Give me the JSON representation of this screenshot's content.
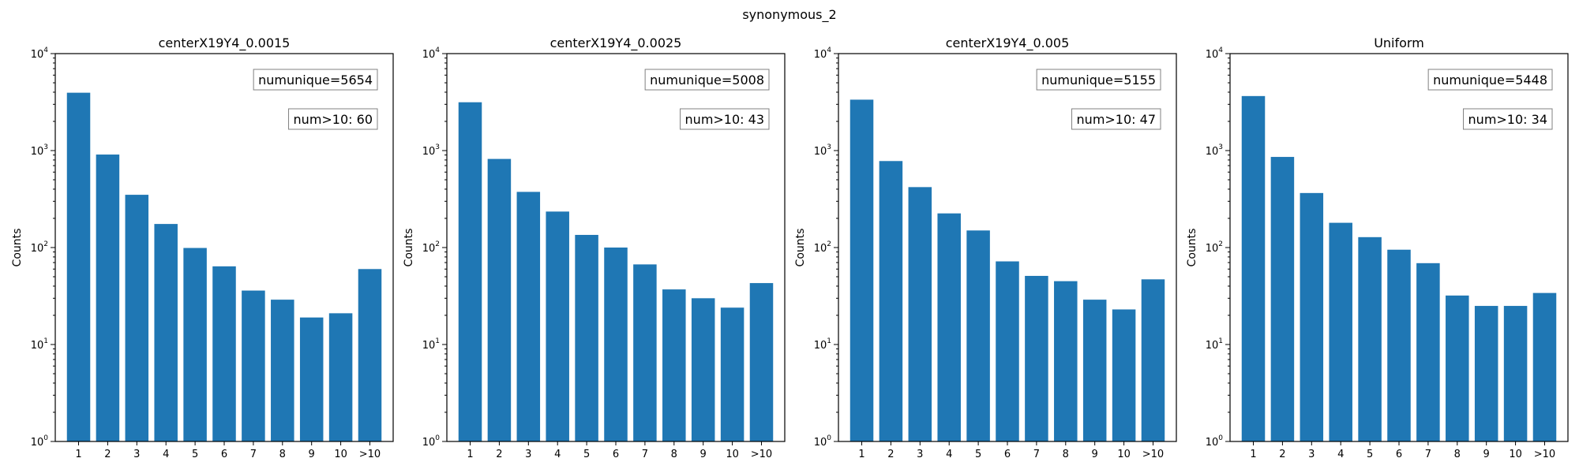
{
  "suptitle": "synonymous_2",
  "chart_data": [
    {
      "type": "bar",
      "title": "centerX19Y4_0.0015",
      "xlabel": "",
      "ylabel": "Counts",
      "yscale": "log",
      "ylim": [
        1,
        10000
      ],
      "y_ticks": [
        "10^0",
        "10^1",
        "10^2",
        "10^3",
        "10^4"
      ],
      "categories": [
        "1",
        "2",
        "3",
        "4",
        "5",
        "6",
        "7",
        "8",
        "9",
        "10",
        ">10"
      ],
      "values": [
        3950,
        910,
        350,
        175,
        99,
        64,
        36,
        29,
        19,
        21,
        60
      ],
      "annotations": [
        "numunique=5654",
        "num>10: 60"
      ],
      "color": "#1f77b4"
    },
    {
      "type": "bar",
      "title": "centerX19Y4_0.0025",
      "xlabel": "",
      "ylabel": "Counts",
      "yscale": "log",
      "ylim": [
        1,
        10000
      ],
      "y_ticks": [
        "10^0",
        "10^1",
        "10^2",
        "10^3",
        "10^4"
      ],
      "categories": [
        "1",
        "2",
        "3",
        "4",
        "5",
        "6",
        "7",
        "8",
        "9",
        "10",
        ">10"
      ],
      "values": [
        3150,
        820,
        375,
        235,
        135,
        100,
        67,
        37,
        30,
        24,
        43
      ],
      "annotations": [
        "numunique=5008",
        "num>10: 43"
      ],
      "color": "#1f77b4"
    },
    {
      "type": "bar",
      "title": "centerX19Y4_0.005",
      "xlabel": "",
      "ylabel": "Counts",
      "yscale": "log",
      "ylim": [
        1,
        10000
      ],
      "y_ticks": [
        "10^0",
        "10^1",
        "10^2",
        "10^3",
        "10^4"
      ],
      "categories": [
        "1",
        "2",
        "3",
        "4",
        "5",
        "6",
        "7",
        "8",
        "9",
        "10",
        ">10"
      ],
      "values": [
        3350,
        780,
        420,
        225,
        150,
        72,
        51,
        45,
        29,
        23,
        47
      ],
      "annotations": [
        "numunique=5155",
        "num>10: 47"
      ],
      "color": "#1f77b4"
    },
    {
      "type": "bar",
      "title": "Uniform",
      "xlabel": "",
      "ylabel": "Counts",
      "yscale": "log",
      "ylim": [
        1,
        10000
      ],
      "y_ticks": [
        "10^0",
        "10^1",
        "10^2",
        "10^3",
        "10^4"
      ],
      "categories": [
        "1",
        "2",
        "3",
        "4",
        "5",
        "6",
        "7",
        "8",
        "9",
        "10",
        ">10"
      ],
      "values": [
        3650,
        860,
        365,
        180,
        128,
        95,
        69,
        32,
        25,
        25,
        34
      ],
      "annotations": [
        "numunique=5448",
        "num>10: 34"
      ],
      "color": "#1f77b4"
    }
  ]
}
